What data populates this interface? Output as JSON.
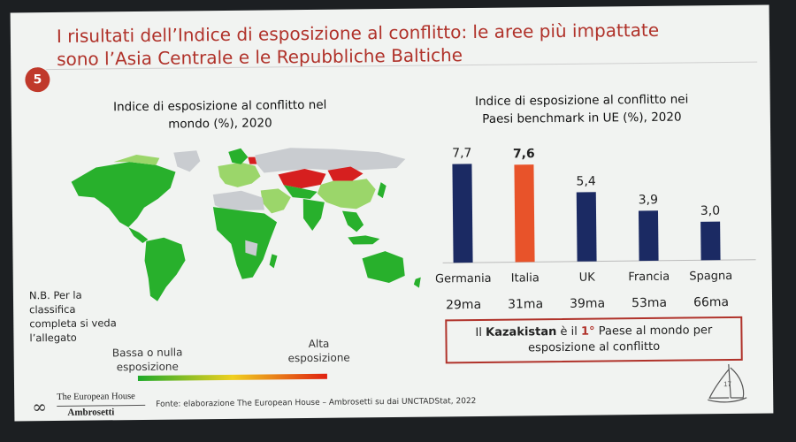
{
  "slide": {
    "number": "5",
    "title_line1": "I risultati dell’Indice di esposizione al conflitto: le aree più impattate",
    "title_line2": "sono l’Asia Centrale e le Repubbliche Baltiche",
    "map_title_line1": "Indice di esposizione al conflitto nel",
    "map_title_line2": "mondo (%), 2020",
    "note": "N.B. Per la classifica completa si veda l’allegato",
    "legend_low": "Bassa o nulla esposizione",
    "legend_high": "Alta esposizione",
    "callout_prefix": "Il",
    "callout_country": "Kazakistan",
    "callout_mid": "è il",
    "callout_rank": "1°",
    "callout_suffix": "Paese al mondo per",
    "callout_line2": "esposizione al conflitto",
    "logo_top": "The European House",
    "logo_bottom": "Ambrosetti",
    "source": "Fonte: elaborazione The European House – Ambrosetti su dai UNCTADStat, 2022",
    "page": "17"
  },
  "colors": {
    "title": "#b0322a",
    "bar_default": "#1b2a63",
    "bar_highlight": "#e8532a",
    "map_green": "#28b02c",
    "map_light_green": "#9bd66a",
    "map_red": "#d61f1f",
    "map_grey": "#c9ccd0"
  },
  "chart_data": {
    "type": "bar",
    "title": "Indice di esposizione al conflitto nei Paesi benchmark in UE (%), 2020",
    "categories": [
      "Germania",
      "Italia",
      "UK",
      "Francia",
      "Spagna"
    ],
    "values": [
      7.7,
      7.6,
      5.4,
      3.9,
      3.0
    ],
    "value_labels": [
      "7,7",
      "7,6",
      "5,4",
      "3,9",
      "3,0"
    ],
    "ranks": [
      "29ma",
      "31ma",
      "39ma",
      "53ma",
      "66ma"
    ],
    "highlight": "Italia",
    "ylim": [
      0,
      8
    ]
  }
}
